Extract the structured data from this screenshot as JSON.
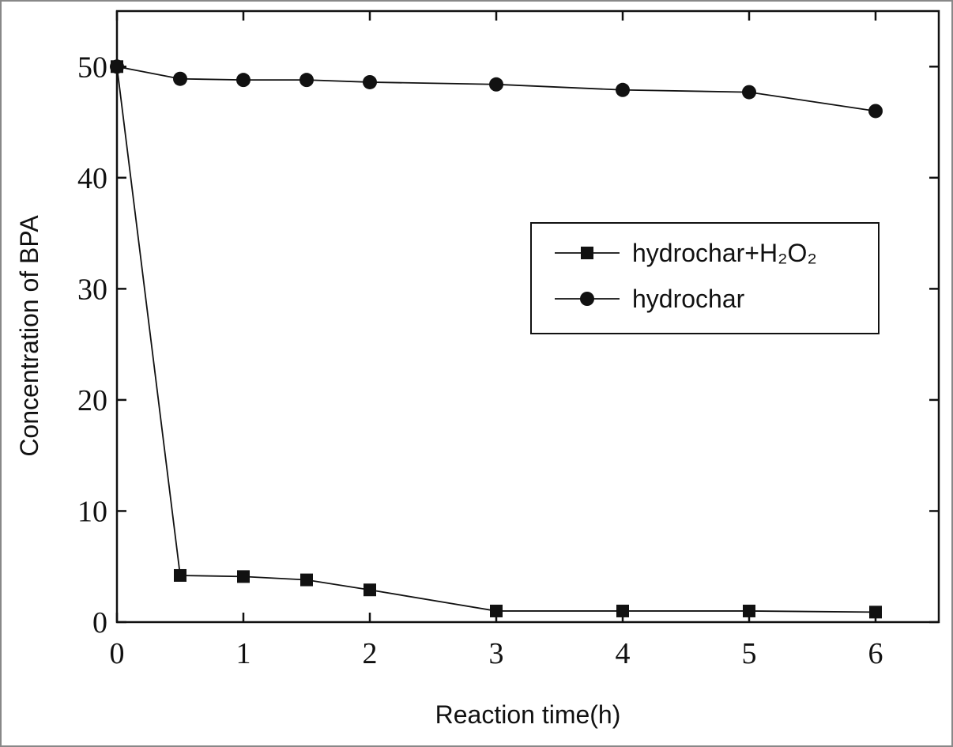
{
  "chart_data": {
    "type": "line",
    "x_label": "Reaction time(h)",
    "y_label": "Concentration of BPA",
    "x": [
      0,
      0.5,
      1,
      1.5,
      2,
      3,
      4,
      5,
      6
    ],
    "series": [
      {
        "name": "hydrochar+H₂O₂",
        "color": "#111111",
        "marker": "square",
        "values": [
          50,
          4.2,
          4.1,
          3.8,
          2.9,
          1.0,
          1.0,
          1.0,
          0.9
        ]
      },
      {
        "name": "hydrochar",
        "color": "#111111",
        "marker": "circle",
        "values": [
          50,
          48.9,
          48.8,
          48.8,
          48.6,
          48.4,
          47.9,
          47.7,
          46.0
        ]
      }
    ],
    "xlim": [
      0,
      6.5
    ],
    "xticks": [
      0,
      1,
      2,
      3,
      4,
      5,
      6
    ],
    "ylim": [
      0,
      55
    ],
    "yticks": [
      0,
      10,
      20,
      30,
      40,
      50
    ],
    "legend": "right"
  }
}
